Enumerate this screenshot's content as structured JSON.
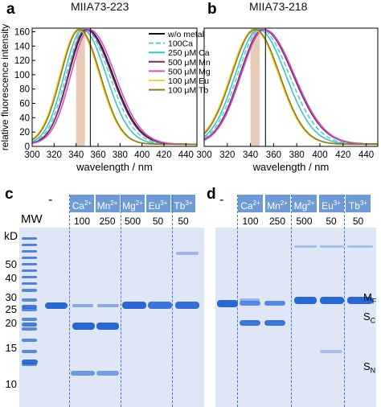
{
  "panels": {
    "a": {
      "label": "a",
      "title": "MIIA73-223"
    },
    "b": {
      "label": "b",
      "title": "MIIA73-218"
    },
    "c": {
      "label": "c"
    },
    "d": {
      "label": "d"
    }
  },
  "chart_data": [
    {
      "type": "line",
      "panel": "a",
      "title": "MIIA73-223",
      "xlabel": "wavelength / nm",
      "ylabel": "relative fluorescence intensity",
      "xlim": [
        300,
        450
      ],
      "ylim": [
        0,
        165
      ],
      "xticks": [
        "300",
        "320",
        "340",
        "360",
        "380",
        "400",
        "420",
        "440"
      ],
      "yticks": [
        "0",
        "20",
        "40",
        "60",
        "80",
        "100",
        "120",
        "140",
        "160"
      ],
      "vline": 353,
      "band": [
        340,
        348
      ],
      "legend_location": "top-right",
      "series": [
        {
          "name": "w/o metal",
          "color": "#111111",
          "dash": "none",
          "peak": 350,
          "width_left": 30,
          "width_right": 42
        },
        {
          "name": "100Ca",
          "color": "#5bc8e6",
          "dash": "6,3",
          "peak": 348,
          "width_left": 30,
          "width_right": 40
        },
        {
          "name": "250 μM Ca",
          "color": "#39c6c0",
          "dash": "none",
          "peak": 346,
          "width_left": 30,
          "width_right": 38
        },
        {
          "name": "500 μM Mn",
          "color": "#7b2a5a",
          "dash": "none",
          "peak": 349,
          "width_left": 29,
          "width_right": 42
        },
        {
          "name": "500 μM Mg",
          "color": "#d04ed0",
          "dash": "none",
          "peak": 352,
          "width_left": 30,
          "width_right": 42
        },
        {
          "name": "100 μM Eu",
          "color": "#f0d63a",
          "dash": "none",
          "peak": 342,
          "width_left": 30,
          "width_right": 34
        },
        {
          "name": "100 μM Tb",
          "color": "#8c7a1e",
          "dash": "none",
          "peak": 343,
          "width_left": 30,
          "width_right": 34
        }
      ]
    },
    {
      "type": "line",
      "panel": "b",
      "title": "MIIA73-218",
      "xlabel": "wavelength / nm",
      "ylabel": "",
      "xlim": [
        300,
        450
      ],
      "ylim": [
        0,
        165
      ],
      "xticks": [
        "300",
        "320",
        "340",
        "360",
        "380",
        "400",
        "420",
        "440"
      ],
      "yticks": [],
      "vline": 353,
      "band": [
        340,
        348
      ],
      "series": [
        {
          "name": "w/o metal",
          "color": "#111111",
          "dash": "none",
          "peak": 352,
          "width_left": 36,
          "width_right": 46
        },
        {
          "name": "100Ca",
          "color": "#5bc8e6",
          "dash": "6,3",
          "peak": 349,
          "width_left": 36,
          "width_right": 44
        },
        {
          "name": "250 μM Ca",
          "color": "#39c6c0",
          "dash": "none",
          "peak": 347,
          "width_left": 36,
          "width_right": 42
        },
        {
          "name": "500 μM Mn",
          "color": "#7b2a5a",
          "dash": "none",
          "peak": 351,
          "width_left": 36,
          "width_right": 46
        },
        {
          "name": "500 μM Mg",
          "color": "#d04ed0",
          "dash": "none",
          "peak": 352,
          "width_left": 36,
          "width_right": 46
        },
        {
          "name": "100 μM Eu",
          "color": "#f0d63a",
          "dash": "none",
          "peak": 343,
          "width_left": 36,
          "width_right": 38
        },
        {
          "name": "100 μM Tb",
          "color": "#8c7a1e",
          "dash": "none",
          "peak": 344,
          "width_left": 36,
          "width_right": 38
        }
      ]
    }
  ],
  "gel": {
    "ladder_title": "MW",
    "unit": "kD",
    "control_label": "-",
    "mw_marks": [
      "50",
      "40",
      "30",
      "25",
      "20",
      "15",
      "10"
    ],
    "lanes_c": [
      {
        "ion": "Ca",
        "charge": "2+",
        "conc": "100"
      },
      {
        "ion": "Mn",
        "charge": "2+",
        "conc": "250"
      },
      {
        "ion": "Mg",
        "charge": "2+",
        "conc": "500"
      },
      {
        "ion": "Eu",
        "charge": "3+",
        "conc": "50"
      },
      {
        "ion": "Tb",
        "charge": "3+",
        "conc": "50"
      }
    ],
    "lanes_d": [
      {
        "ion": "Ca",
        "charge": "2+",
        "conc": "100"
      },
      {
        "ion": "Mn",
        "charge": "2+",
        "conc": "250"
      },
      {
        "ion": "Mg",
        "charge": "2+",
        "conc": "500"
      },
      {
        "ion": "Eu",
        "charge": "3+",
        "conc": "50"
      },
      {
        "ion": "Tb",
        "charge": "3+",
        "conc": "50"
      }
    ],
    "right_labels": [
      {
        "main": "M",
        "sub": "F"
      },
      {
        "main": "S",
        "sub": "C"
      },
      {
        "main": "S",
        "sub": "N"
      }
    ]
  },
  "colors": {
    "chip": "#6e9bd6",
    "gel_bg": "#dfe7f6",
    "band": "#1f5fd6",
    "dash": "#3b77c9",
    "shade": "#e3c2ab"
  }
}
